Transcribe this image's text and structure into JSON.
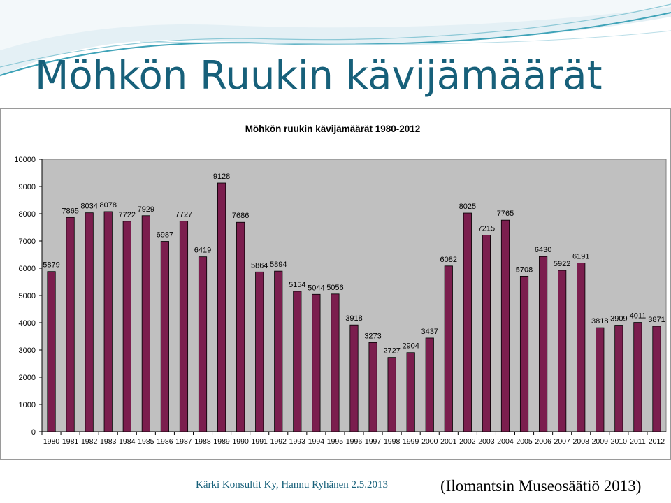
{
  "slide": {
    "title": "Möhkön Ruukin kävijämäärät",
    "footer_left": "Kärki Konsultit Ky, Hannu Ryhänen 2.5.2013",
    "footer_right": "(Ilomantsin Museosäätiö 2013)"
  },
  "colors": {
    "bar_fill": "#7b1e4e",
    "plot_background": "#c0c0c0",
    "title_color": "#17607a",
    "swoosh_light": "#dcecf3",
    "swoosh_line": "#3fa3b8"
  },
  "chart_data": {
    "type": "bar",
    "title": "Möhkön ruukin kävijämäärät 1980-2012",
    "xlabel": "",
    "ylabel": "",
    "ylim": [
      0,
      10000
    ],
    "yticks": [
      0,
      1000,
      2000,
      3000,
      4000,
      5000,
      6000,
      7000,
      8000,
      9000,
      10000
    ],
    "grid": false,
    "legend": "none",
    "categories": [
      "1980",
      "1981",
      "1982",
      "1983",
      "1984",
      "1985",
      "1986",
      "1987",
      "1988",
      "1989",
      "1990",
      "1991",
      "1992",
      "1993",
      "1994",
      "1995",
      "1996",
      "1997",
      "1998",
      "1999",
      "2000",
      "2001",
      "2002",
      "2003",
      "2004",
      "2005",
      "2006",
      "2007",
      "2008",
      "2009",
      "2010",
      "2011",
      "2012"
    ],
    "values": [
      5879,
      7865,
      8034,
      8078,
      7722,
      7929,
      6987,
      7727,
      6419,
      9128,
      7686,
      5864,
      5894,
      5154,
      5044,
      5056,
      3918,
      3273,
      2727,
      2904,
      3437,
      6082,
      8025,
      7215,
      7765,
      5708,
      6430,
      5922,
      6191,
      3818,
      3909,
      4011,
      3871
    ]
  }
}
